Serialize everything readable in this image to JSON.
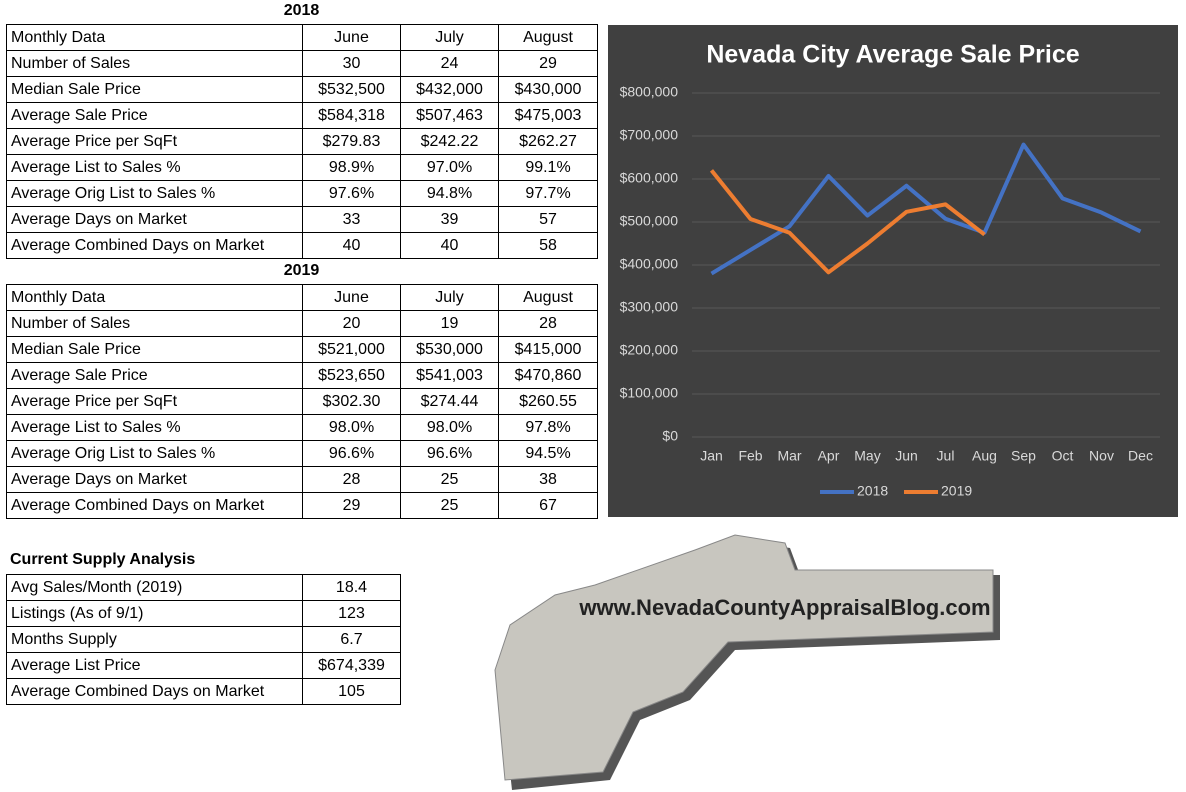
{
  "tables": [
    {
      "title": "2018",
      "header": [
        "Monthly Data",
        "June",
        "July",
        "August"
      ],
      "rows": [
        [
          "Number of Sales",
          "30",
          "24",
          "29"
        ],
        [
          "Median Sale Price",
          "$532,500",
          "$432,000",
          "$430,000"
        ],
        [
          "Average Sale Price",
          "$584,318",
          "$507,463",
          "$475,003"
        ],
        [
          "Average Price per SqFt",
          "$279.83",
          "$242.22",
          "$262.27"
        ],
        [
          "Average List to Sales %",
          "98.9%",
          "97.0%",
          "99.1%"
        ],
        [
          "Average Orig List to Sales %",
          "97.6%",
          "94.8%",
          "97.7%"
        ],
        [
          "Average Days on Market",
          "33",
          "39",
          "57"
        ],
        [
          "Average Combined Days on Market",
          "40",
          "40",
          "58"
        ]
      ]
    },
    {
      "title": "2019",
      "header": [
        "Monthly Data",
        "June",
        "July",
        "August"
      ],
      "rows": [
        [
          "Number of Sales",
          "20",
          "19",
          "28"
        ],
        [
          "Median Sale Price",
          "$521,000",
          "$530,000",
          "$415,000"
        ],
        [
          "Average Sale Price",
          "$523,650",
          "$541,003",
          "$470,860"
        ],
        [
          "Average Price per SqFt",
          "$302.30",
          "$274.44",
          "$260.55"
        ],
        [
          "Average List to Sales %",
          "98.0%",
          "98.0%",
          "97.8%"
        ],
        [
          "Average Orig List to Sales %",
          "96.6%",
          "96.6%",
          "94.5%"
        ],
        [
          "Average Days on Market",
          "28",
          "25",
          "38"
        ],
        [
          "Average Combined Days on Market",
          "29",
          "25",
          "67"
        ]
      ]
    }
  ],
  "supply": {
    "title": "Current Supply Analysis",
    "rows": [
      [
        "Avg Sales/Month (2019)",
        "18.4"
      ],
      [
        "Listings (As of 9/1)",
        "123"
      ],
      [
        "Months Supply",
        "6.7"
      ],
      [
        "Average List Price",
        "$674,339"
      ],
      [
        "Average Combined Days on Market",
        "105"
      ]
    ]
  },
  "logo": {
    "text": "www.NevadaCountyAppraisalBlog.com"
  },
  "chart_data": {
    "type": "line",
    "title": "Nevada City Average Sale Price",
    "categories": [
      "Jan",
      "Feb",
      "Mar",
      "Apr",
      "May",
      "Jun",
      "Jul",
      "Aug",
      "Sep",
      "Oct",
      "Nov",
      "Dec"
    ],
    "series": [
      {
        "name": "2018",
        "color": "#4472c4",
        "values": [
          380000,
          435000,
          490000,
          607000,
          515000,
          584318,
          507463,
          475003,
          680000,
          555000,
          522000,
          478000
        ]
      },
      {
        "name": "2019",
        "color": "#ed7d31",
        "values": [
          620000,
          507000,
          475000,
          383000,
          450000,
          523650,
          541003,
          470860,
          null,
          null,
          null,
          null
        ]
      }
    ],
    "ylim": [
      0,
      800000
    ],
    "yticks": [
      {
        "value": 0,
        "label": "$0"
      },
      {
        "value": 100000,
        "label": "$100,000"
      },
      {
        "value": 200000,
        "label": "$200,000"
      },
      {
        "value": 300000,
        "label": "$300,000"
      },
      {
        "value": 400000,
        "label": "$400,000"
      },
      {
        "value": 500000,
        "label": "$500,000"
      },
      {
        "value": 600000,
        "label": "$600,000"
      },
      {
        "value": 700000,
        "label": "$700,000"
      },
      {
        "value": 800000,
        "label": "$800,000"
      }
    ],
    "grid": true,
    "legend": "bottom"
  }
}
